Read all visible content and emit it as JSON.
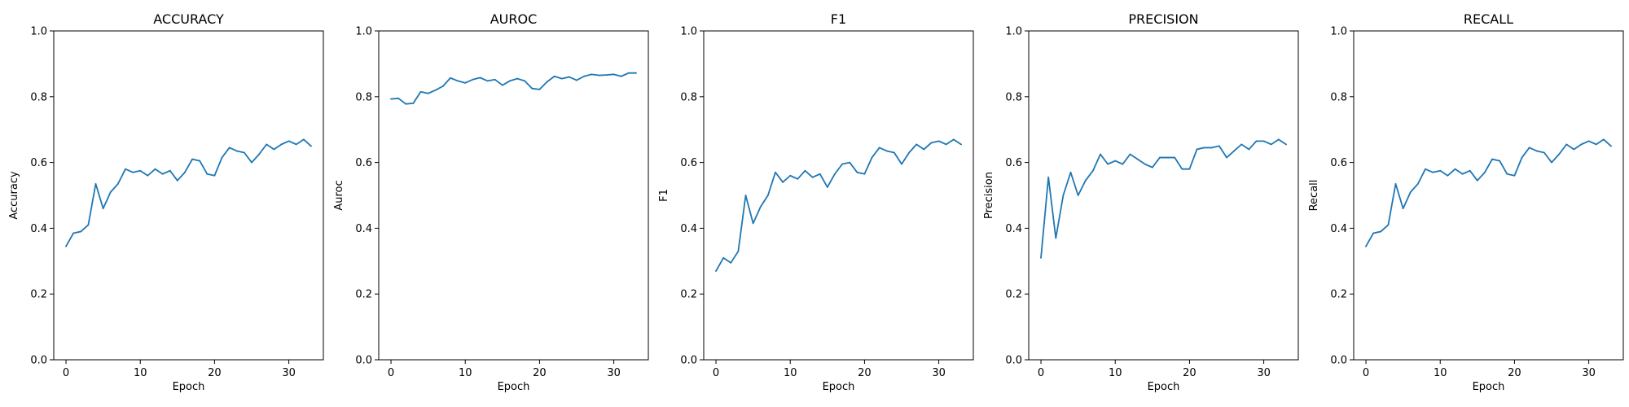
{
  "chart_data": [
    {
      "type": "line",
      "title": "ACCURACY",
      "xlabel": "Epoch",
      "ylabel": "Accuracy",
      "xlim": [
        -1.65,
        34.65
      ],
      "ylim": [
        0,
        1
      ],
      "xticks": [
        0,
        10,
        20,
        30
      ],
      "yticks": [
        0.0,
        0.2,
        0.4,
        0.6,
        0.8,
        1.0
      ],
      "grid": false,
      "series": [
        {
          "color": "#1f77b4",
          "x": [
            0,
            1,
            2,
            3,
            4,
            5,
            6,
            7,
            8,
            9,
            10,
            11,
            12,
            13,
            14,
            15,
            16,
            17,
            18,
            19,
            20,
            21,
            22,
            23,
            24,
            25,
            26,
            27,
            28,
            29,
            30,
            31,
            32,
            33
          ],
          "y": [
            0.345,
            0.385,
            0.39,
            0.41,
            0.535,
            0.46,
            0.51,
            0.535,
            0.58,
            0.57,
            0.575,
            0.56,
            0.58,
            0.565,
            0.575,
            0.545,
            0.57,
            0.61,
            0.605,
            0.565,
            0.56,
            0.615,
            0.645,
            0.635,
            0.63,
            0.6,
            0.625,
            0.655,
            0.64,
            0.655,
            0.665,
            0.655,
            0.67,
            0.65
          ]
        }
      ]
    },
    {
      "type": "line",
      "title": "AUROC",
      "xlabel": "Epoch",
      "ylabel": "Auroc",
      "xlim": [
        -1.65,
        34.65
      ],
      "ylim": [
        0,
        1
      ],
      "xticks": [
        0,
        10,
        20,
        30
      ],
      "yticks": [
        0.0,
        0.2,
        0.4,
        0.6,
        0.8,
        1.0
      ],
      "grid": false,
      "series": [
        {
          "color": "#1f77b4",
          "x": [
            0,
            1,
            2,
            3,
            4,
            5,
            6,
            7,
            8,
            9,
            10,
            11,
            12,
            13,
            14,
            15,
            16,
            17,
            18,
            19,
            20,
            21,
            22,
            23,
            24,
            25,
            26,
            27,
            28,
            29,
            30,
            31,
            32,
            33
          ],
          "y": [
            0.793,
            0.795,
            0.778,
            0.78,
            0.815,
            0.81,
            0.82,
            0.832,
            0.857,
            0.848,
            0.842,
            0.852,
            0.858,
            0.848,
            0.852,
            0.835,
            0.848,
            0.855,
            0.848,
            0.825,
            0.822,
            0.845,
            0.862,
            0.855,
            0.86,
            0.85,
            0.862,
            0.868,
            0.865,
            0.866,
            0.868,
            0.862,
            0.872,
            0.872
          ]
        }
      ]
    },
    {
      "type": "line",
      "title": "F1",
      "xlabel": "Epoch",
      "ylabel": "F1",
      "xlim": [
        -1.65,
        34.65
      ],
      "ylim": [
        0,
        1
      ],
      "xticks": [
        0,
        10,
        20,
        30
      ],
      "yticks": [
        0.0,
        0.2,
        0.4,
        0.6,
        0.8,
        1.0
      ],
      "grid": false,
      "series": [
        {
          "color": "#1f77b4",
          "x": [
            0,
            1,
            2,
            3,
            4,
            5,
            6,
            7,
            8,
            9,
            10,
            11,
            12,
            13,
            14,
            15,
            16,
            17,
            18,
            19,
            20,
            21,
            22,
            23,
            24,
            25,
            26,
            27,
            28,
            29,
            30,
            31,
            32,
            33
          ],
          "y": [
            0.27,
            0.31,
            0.295,
            0.33,
            0.5,
            0.415,
            0.465,
            0.5,
            0.57,
            0.54,
            0.56,
            0.55,
            0.575,
            0.555,
            0.565,
            0.525,
            0.565,
            0.595,
            0.6,
            0.57,
            0.565,
            0.615,
            0.645,
            0.635,
            0.63,
            0.595,
            0.63,
            0.655,
            0.64,
            0.66,
            0.665,
            0.655,
            0.67,
            0.655
          ]
        }
      ]
    },
    {
      "type": "line",
      "title": "PRECISION",
      "xlabel": "Epoch",
      "ylabel": "Precision",
      "xlim": [
        -1.65,
        34.65
      ],
      "ylim": [
        0,
        1
      ],
      "xticks": [
        0,
        10,
        20,
        30
      ],
      "yticks": [
        0.0,
        0.2,
        0.4,
        0.6,
        0.8,
        1.0
      ],
      "grid": false,
      "series": [
        {
          "color": "#1f77b4",
          "x": [
            0,
            1,
            2,
            3,
            4,
            5,
            6,
            7,
            8,
            9,
            10,
            11,
            12,
            13,
            14,
            15,
            16,
            17,
            18,
            19,
            20,
            21,
            22,
            23,
            24,
            25,
            26,
            27,
            28,
            29,
            30,
            31,
            32,
            33
          ],
          "y": [
            0.31,
            0.555,
            0.37,
            0.5,
            0.57,
            0.5,
            0.545,
            0.575,
            0.625,
            0.595,
            0.605,
            0.595,
            0.625,
            0.61,
            0.595,
            0.585,
            0.615,
            0.615,
            0.615,
            0.58,
            0.58,
            0.64,
            0.645,
            0.645,
            0.65,
            0.615,
            0.635,
            0.655,
            0.64,
            0.665,
            0.665,
            0.655,
            0.67,
            0.655
          ]
        }
      ]
    },
    {
      "type": "line",
      "title": "RECALL",
      "xlabel": "Epoch",
      "ylabel": "Recall",
      "xlim": [
        -1.65,
        34.65
      ],
      "ylim": [
        0,
        1
      ],
      "xticks": [
        0,
        10,
        20,
        30
      ],
      "yticks": [
        0.0,
        0.2,
        0.4,
        0.6,
        0.8,
        1.0
      ],
      "grid": false,
      "series": [
        {
          "color": "#1f77b4",
          "x": [
            0,
            1,
            2,
            3,
            4,
            5,
            6,
            7,
            8,
            9,
            10,
            11,
            12,
            13,
            14,
            15,
            16,
            17,
            18,
            19,
            20,
            21,
            22,
            23,
            24,
            25,
            26,
            27,
            28,
            29,
            30,
            31,
            32,
            33
          ],
          "y": [
            0.345,
            0.385,
            0.39,
            0.41,
            0.535,
            0.46,
            0.51,
            0.535,
            0.58,
            0.57,
            0.575,
            0.56,
            0.58,
            0.565,
            0.575,
            0.545,
            0.57,
            0.61,
            0.605,
            0.565,
            0.56,
            0.615,
            0.645,
            0.635,
            0.63,
            0.6,
            0.625,
            0.655,
            0.64,
            0.655,
            0.665,
            0.655,
            0.67,
            0.65
          ]
        }
      ]
    }
  ]
}
